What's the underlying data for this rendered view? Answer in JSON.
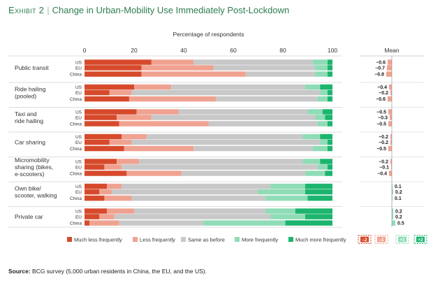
{
  "header": {
    "exhibit": "Exhibit 2",
    "title": "Change in Urban-Mobility Use Immediately Post-Lockdown"
  },
  "footer": {
    "source_label": "Source:",
    "source_text": "BCG survey (5,000 urban residents in China, the EU, and the US)."
  },
  "chart_data": {
    "type": "bar",
    "orientation": "horizontal-stacked",
    "xlabel": "Percentage of respondents",
    "xlim": [
      0,
      100
    ],
    "xticks": [
      0,
      20,
      40,
      60,
      80,
      100
    ],
    "mean_label": "Mean",
    "legend_position": "bottom",
    "series": [
      {
        "name": "Much less frequently",
        "color": "#d64a2b"
      },
      {
        "name": "Less frequently",
        "color": "#f0a291"
      },
      {
        "name": "Same as before",
        "color": "#c8c8c8"
      },
      {
        "name": "More frequently",
        "color": "#8fdcb6"
      },
      {
        "name": "Much more frequently",
        "color": "#1db56e"
      }
    ],
    "scale_labels": [
      "–2",
      "–1",
      "+1",
      "+2"
    ],
    "scale_colors": [
      "#d64a2b",
      "#f0a291",
      "#8fdcb6",
      "#1db56e"
    ],
    "categories": [
      {
        "label": [
          "Public transit"
        ],
        "rows": [
          {
            "region": "US",
            "values": [
              27,
              17,
              48,
              6,
              2
            ],
            "mean": -0.6
          },
          {
            "region": "EU",
            "values": [
              23,
              29,
              41,
              5,
              2
            ],
            "mean": -0.7
          },
          {
            "region": "China",
            "values": [
              23,
              42,
              28,
              5,
              2
            ],
            "mean": -0.8
          }
        ]
      },
      {
        "label": [
          "Ride hailing",
          "(pooled)"
        ],
        "rows": [
          {
            "region": "US",
            "values": [
              20,
              15,
              54,
              6,
              5
            ],
            "mean": -0.4
          },
          {
            "region": "EU",
            "values": [
              10,
              9,
              76,
              3,
              2
            ],
            "mean": -0.2
          },
          {
            "region": "China",
            "values": [
              18,
              35,
              41,
              4,
              2
            ],
            "mean": -0.6
          }
        ]
      },
      {
        "label": [
          "Taxi and",
          "ride hailing"
        ],
        "rows": [
          {
            "region": "US",
            "values": [
              21,
              17,
              52,
              6,
              4
            ],
            "mean": -0.5
          },
          {
            "region": "EU",
            "values": [
              13,
              14,
              66,
              4,
              3
            ],
            "mean": -0.3
          },
          {
            "region": "China",
            "values": [
              14,
              36,
              44,
              4,
              2
            ],
            "mean": -0.5
          }
        ]
      },
      {
        "label": [
          "Car sharing"
        ],
        "rows": [
          {
            "region": "US",
            "values": [
              15,
              10,
              63,
              7,
              5
            ],
            "mean": -0.2
          },
          {
            "region": "EU",
            "values": [
              10,
              9,
              76,
              3,
              2
            ],
            "mean": -0.2
          },
          {
            "region": "China",
            "values": [
              16,
              28,
              48,
              6,
              2
            ],
            "mean": -0.5
          }
        ]
      },
      {
        "label": [
          "Micromobility",
          "sharing (bikes,",
          "e-scooters)"
        ],
        "rows": [
          {
            "region": "US",
            "values": [
              13,
              9,
              66,
              7,
              5
            ],
            "mean": -0.2
          },
          {
            "region": "EU",
            "values": [
              8,
              7,
              79,
              4,
              2
            ],
            "mean": -0.1
          },
          {
            "region": "China",
            "values": [
              17,
              22,
              50,
              8,
              3
            ],
            "mean": -0.4
          }
        ]
      },
      {
        "label": [
          "Own bike/",
          "scooter, walking"
        ],
        "rows": [
          {
            "region": "US",
            "values": [
              9,
              6,
              60,
              14,
              11
            ],
            "mean": 0.1
          },
          {
            "region": "EU",
            "values": [
              6,
              5,
              59,
              19,
              11
            ],
            "mean": 0.2
          },
          {
            "region": "China",
            "values": [
              8,
              11,
              54,
              17,
              10
            ],
            "mean": 0.1
          }
        ]
      },
      {
        "label": [
          "Private car"
        ],
        "rows": [
          {
            "region": "US",
            "values": [
              9,
              11,
              53,
              12,
              15
            ],
            "mean": 0.2
          },
          {
            "region": "EU",
            "values": [
              6,
              6,
              63,
              14,
              11
            ],
            "mean": 0.2
          },
          {
            "region": "China",
            "values": [
              2,
              12,
              34,
              33,
              19
            ],
            "mean": 0.5
          }
        ]
      }
    ]
  }
}
